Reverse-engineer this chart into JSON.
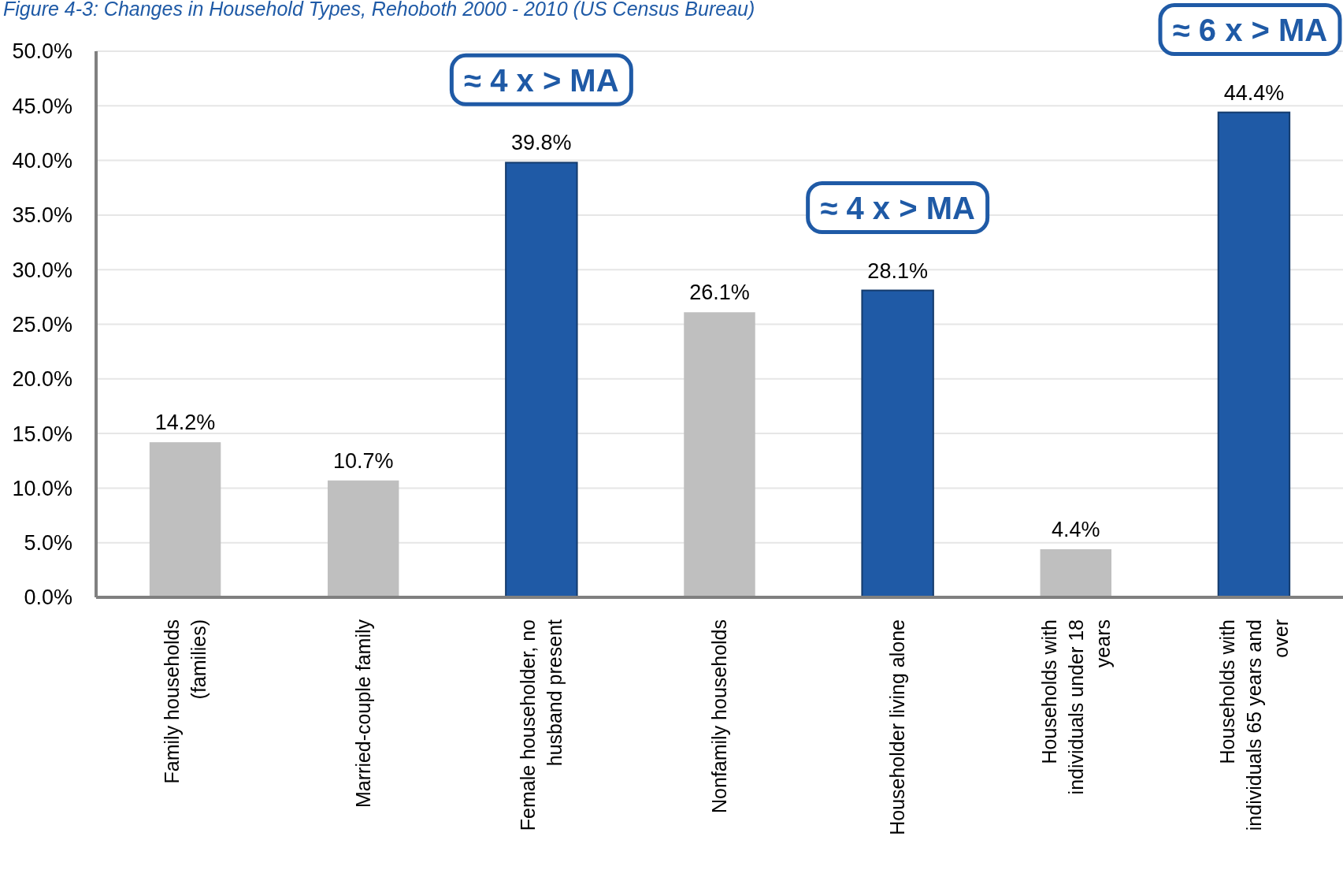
{
  "chart_data": {
    "type": "bar",
    "title": "Figure 4-3: Changes in Household Types, Rehoboth 2000 - 2010 (US Census Bureau)",
    "categories": [
      "Family households (families)",
      "Married-couple family",
      "Female householder, no husband present",
      "Nonfamily households",
      "Householder living alone",
      "Households with individuals under 18 years",
      "Households with individuals 65 years and over"
    ],
    "values": [
      14.2,
      10.7,
      39.8,
      26.1,
      28.1,
      4.4,
      44.4
    ],
    "colors": [
      "#bfbfbf",
      "#bfbfbf",
      "#1f5aa6",
      "#bfbfbf",
      "#1f5aa6",
      "#bfbfbf",
      "#1f5aa6"
    ],
    "value_labels": [
      "14.2%",
      "10.7%",
      "39.8%",
      "26.1%",
      "28.1%",
      "4.4%",
      "44.4%"
    ],
    "ylim": [
      0,
      50
    ],
    "yticks": [
      {
        "value": 0,
        "label": "0.0%"
      },
      {
        "value": 5,
        "label": "5.0%"
      },
      {
        "value": 10,
        "label": "10.0%"
      },
      {
        "value": 15,
        "label": "15.0%"
      },
      {
        "value": 20,
        "label": "20.0%"
      },
      {
        "value": 25,
        "label": "25.0%"
      },
      {
        "value": 30,
        "label": "30.0%"
      },
      {
        "value": 35,
        "label": "35.0%"
      },
      {
        "value": 40,
        "label": "40.0%"
      },
      {
        "value": 45,
        "label": "45.0%"
      },
      {
        "value": 50,
        "label": "50.0%"
      }
    ],
    "grid": "y",
    "annotations": [
      {
        "text": "≈ 4 x > MA",
        "x": "Female householder, no husband present",
        "y": 39.8
      },
      {
        "text": "≈ 4 x > MA",
        "x": "Householder living alone",
        "y": 28.1
      },
      {
        "text": "≈ 6 x > MA",
        "x": "Households with individuals 65 years and over",
        "y": 44.4
      }
    ]
  }
}
